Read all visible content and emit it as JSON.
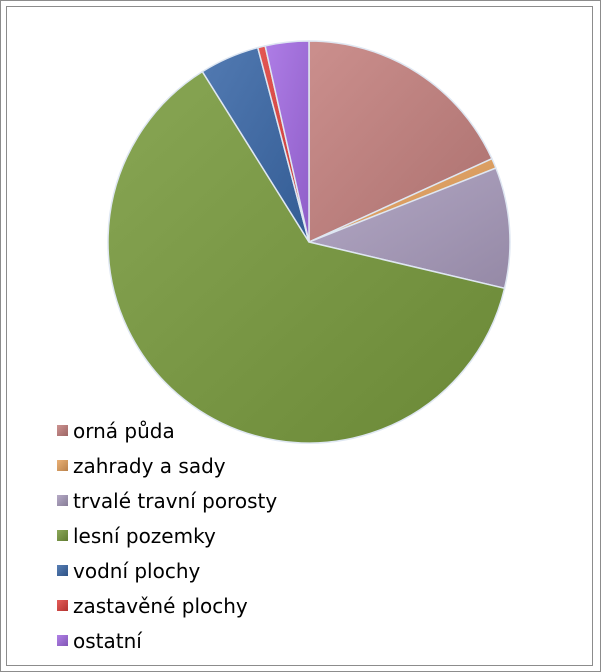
{
  "chart_data": {
    "type": "pie",
    "title": "",
    "categories": [
      "orná půda",
      "zahrady a sady",
      "trvalé travní porosty",
      "lesní pozemky",
      "vodní plochy",
      "zastavěné plochy",
      "ostatní"
    ],
    "values": [
      18.2,
      0.8,
      9.7,
      62.4,
      4.8,
      0.6,
      3.5
    ],
    "unit": "%",
    "colors": [
      "#c4807e",
      "#e8a35e",
      "#a99cbd",
      "#789a3d",
      "#3a68a8",
      "#e0403c",
      "#a36be3"
    ],
    "legend": "bottom-left"
  }
}
